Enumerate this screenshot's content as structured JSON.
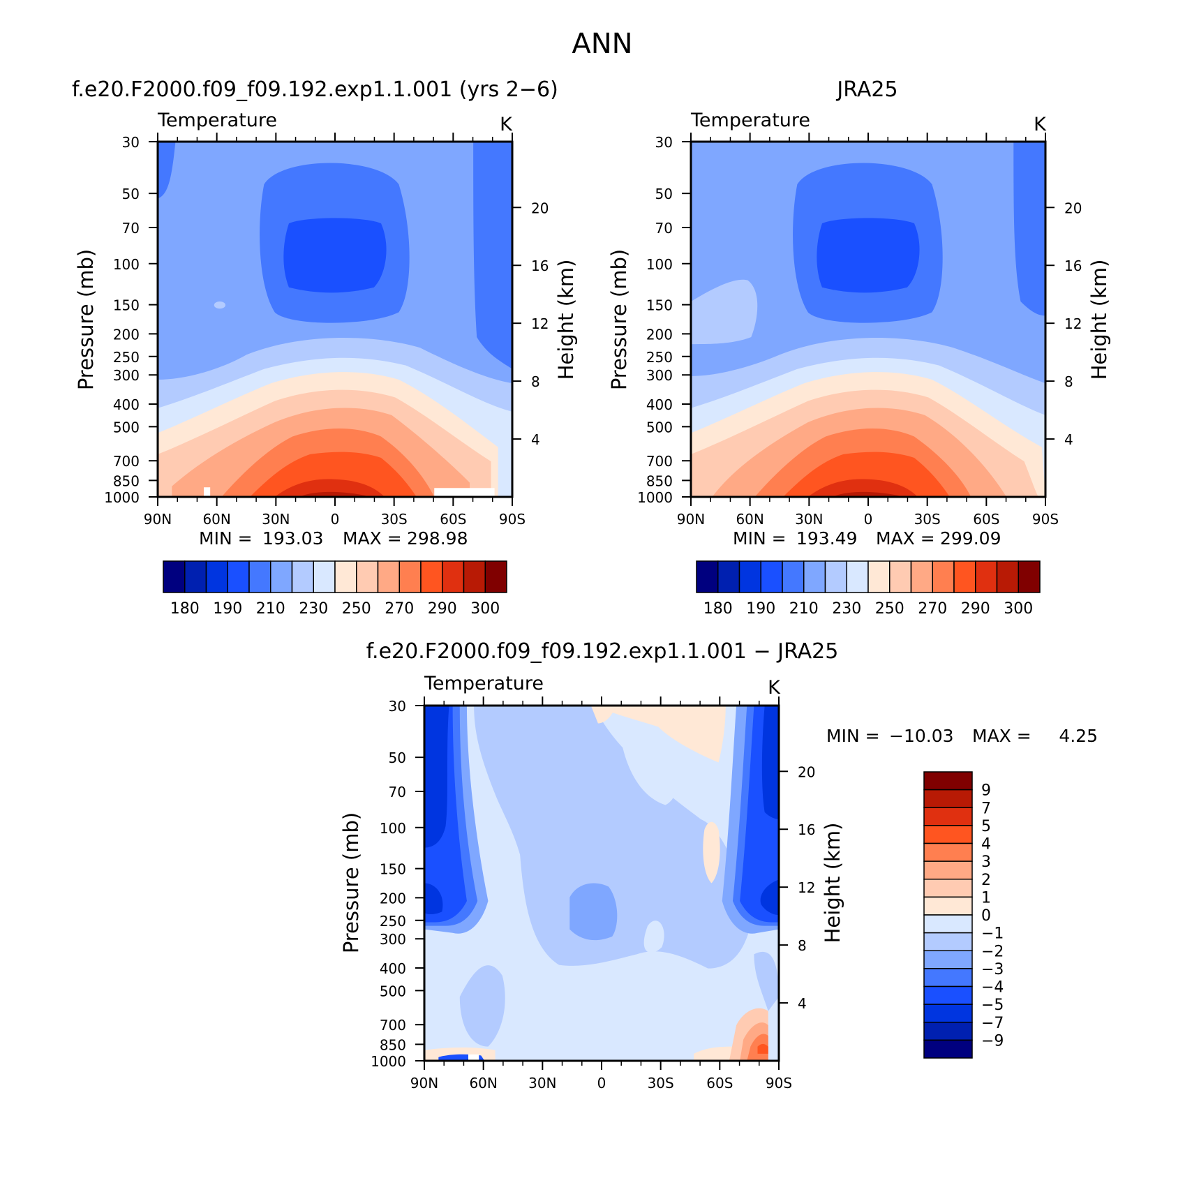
{
  "figure": {
    "title": "ANN"
  },
  "colors": {
    "abs_levels": [
      "#00007f",
      "#0020b0",
      "#0035e0",
      "#1a50ff",
      "#4478ff",
      "#7fa7ff",
      "#b3cbff",
      "#d9e8ff",
      "#ffe8d6",
      "#ffcbb2",
      "#ffa985",
      "#ff7f50",
      "#ff5520",
      "#e03010",
      "#b81a05",
      "#800000"
    ],
    "diff_levels": [
      "#00007f",
      "#0020b0",
      "#0035e0",
      "#1a50ff",
      "#4478ff",
      "#7fa7ff",
      "#b3cbff",
      "#d9e8ff",
      "#ffe8d6",
      "#ffcbb2",
      "#ffa985",
      "#ff7f50",
      "#ff5520",
      "#e03010",
      "#b81a05",
      "#800000"
    ]
  },
  "chart_data": [
    {
      "type": "heatmap",
      "title": "f.e20.F2000.f09_f09.192.exp1.1.001 (yrs 2−6)",
      "subtitle": "Temperature",
      "units": "K",
      "ylabel": "Pressure (mb)",
      "ylabel_right": "Height (km)",
      "x_ticks": [
        "90N",
        "60N",
        "30N",
        "0",
        "30S",
        "60S",
        "90S"
      ],
      "y_ticks": [
        "30",
        "50",
        "70",
        "100",
        "150",
        "200",
        "250",
        "300",
        "400",
        "500",
        "700",
        "850",
        "1000"
      ],
      "y_ticks_right": [
        "4",
        "8",
        "12",
        "16",
        "20"
      ],
      "stats": {
        "min_label": "MIN =",
        "min": "193.03",
        "max_label": "MAX =",
        "max": "298.98"
      },
      "colorbar_labels": [
        "180",
        "190",
        "210",
        "230",
        "250",
        "270",
        "290",
        "300"
      ]
    },
    {
      "type": "heatmap",
      "title": "JRA25",
      "subtitle": "Temperature",
      "units": "K",
      "ylabel": "Pressure (mb)",
      "ylabel_right": "Height (km)",
      "x_ticks": [
        "90N",
        "60N",
        "30N",
        "0",
        "30S",
        "60S",
        "90S"
      ],
      "y_ticks": [
        "30",
        "50",
        "70",
        "100",
        "150",
        "200",
        "250",
        "300",
        "400",
        "500",
        "700",
        "850",
        "1000"
      ],
      "y_ticks_right": [
        "4",
        "8",
        "12",
        "16",
        "20"
      ],
      "stats": {
        "min_label": "MIN =",
        "min": "193.49",
        "max_label": "MAX =",
        "max": "299.09"
      },
      "colorbar_labels": [
        "180",
        "190",
        "210",
        "230",
        "250",
        "270",
        "290",
        "300"
      ]
    },
    {
      "type": "heatmap",
      "title": "f.e20.F2000.f09_f09.192.exp1.1.001 − JRA25",
      "subtitle": "Temperature",
      "units": "K",
      "ylabel": "Pressure (mb)",
      "ylabel_right": "Height (km)",
      "x_ticks": [
        "90N",
        "60N",
        "30N",
        "0",
        "30S",
        "60S",
        "90S"
      ],
      "y_ticks": [
        "30",
        "50",
        "70",
        "100",
        "150",
        "200",
        "250",
        "300",
        "400",
        "500",
        "700",
        "850",
        "1000"
      ],
      "y_ticks_right": [
        "4",
        "8",
        "12",
        "16",
        "20"
      ],
      "stats": {
        "min_label": "MIN =",
        "min": "−10.03",
        "max_label": "MAX =",
        "max": "4.25"
      },
      "colorbar_labels": [
        "9",
        "7",
        "5",
        "4",
        "3",
        "2",
        "1",
        "0",
        "−1",
        "−2",
        "−3",
        "−4",
        "−5",
        "−7",
        "−9"
      ]
    }
  ]
}
